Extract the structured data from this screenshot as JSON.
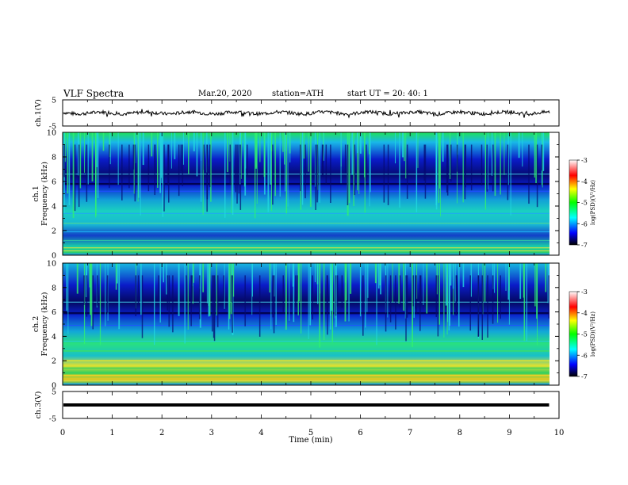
{
  "header": {
    "title": "VLF  Spectra",
    "date": "Mar.20, 2020",
    "station": "station=ATH",
    "start": "start  UT  =    20: 40: 1"
  },
  "chart_data": [
    {
      "type": "line",
      "panel": "ch1-waveform",
      "ylabel": "ch.1(V)",
      "ylim": [
        -5,
        5
      ],
      "yticks": [
        "5",
        "-5"
      ],
      "xlim": [
        0,
        10
      ],
      "description_level": "noisy waveform near 0 V",
      "color": "#000000"
    },
    {
      "type": "heatmap",
      "panel": "ch1-spectrogram",
      "ylabel": "ch.1\nFrequency  (kHz)",
      "ylabel_line1": "ch.1",
      "ylabel_line2": "Frequency  (kHz)",
      "ylim": [
        0,
        10
      ],
      "yticks": [
        "0",
        "2",
        "4",
        "6",
        "8",
        "10"
      ],
      "xlim": [
        0,
        10
      ],
      "colorbar": {
        "label": "log(PSD)(V²/Hz)",
        "ticks": [
          "-3",
          "-4",
          "-5",
          "-6",
          "-7"
        ],
        "range": [
          -7,
          -3
        ]
      },
      "colormap": [
        "#000000",
        "#0000ff",
        "#00ffff",
        "#00ff00",
        "#ffff00",
        "#ff0000",
        "#ffffff"
      ]
    },
    {
      "type": "heatmap",
      "panel": "ch2-spectrogram",
      "ylabel": "ch.2\nFrequency  (kHz)",
      "ylabel_line1": "ch.2",
      "ylabel_line2": "Frequency  (kHz)",
      "ylim": [
        0,
        10
      ],
      "yticks": [
        "0",
        "2",
        "4",
        "6",
        "8",
        "10"
      ],
      "xlim": [
        0,
        10
      ],
      "colorbar": {
        "label": "log(PSD)(V²/Hz)",
        "ticks": [
          "-3",
          "-4",
          "-5",
          "-6",
          "-7"
        ],
        "range": [
          -7,
          -3
        ]
      },
      "colormap": [
        "#000000",
        "#0000ff",
        "#00ffff",
        "#00ff00",
        "#ffff00",
        "#ff0000",
        "#ffffff"
      ]
    },
    {
      "type": "line",
      "panel": "ch3-waveform",
      "ylabel": "ch.3(V)",
      "ylim": [
        -5,
        5
      ],
      "yticks": [
        "5",
        "-5"
      ],
      "xlim": [
        0,
        10
      ],
      "xlabel": "Time  (min)",
      "xticks": [
        "0",
        "1",
        "2",
        "3",
        "4",
        "5",
        "6",
        "7",
        "8",
        "9",
        "10"
      ],
      "data_end_min": 9.8,
      "constant_value": 0,
      "color": "#000000"
    }
  ]
}
